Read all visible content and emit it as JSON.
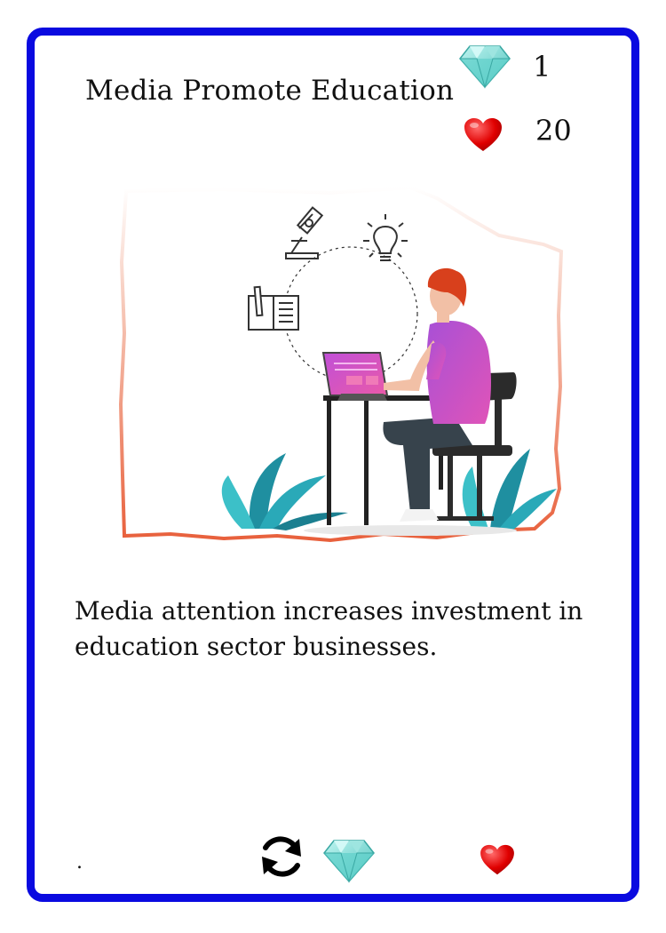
{
  "card": {
    "title": "Media Promote Education",
    "description": "Media attention increases investment in education sector businesses.",
    "border_color": "#0a0ae0"
  },
  "stats": {
    "gem_value": "1",
    "heart_value": "20",
    "gem_icon": "diamond-gem-icon",
    "heart_icon": "red-heart-icon"
  },
  "illustration": {
    "subject": "person studying at laptop with microscope, lightbulb and notebook icons",
    "frame_gradient": [
      "#ffffff",
      "#e8603c"
    ],
    "accent_colors": [
      "#c84fd0",
      "#e06a2a",
      "#2a9fb0",
      "#2e3b44"
    ]
  },
  "footer": {
    "dot_text": ".",
    "icons": [
      "refresh-icon",
      "diamond-gem-icon",
      "red-heart-icon"
    ]
  }
}
